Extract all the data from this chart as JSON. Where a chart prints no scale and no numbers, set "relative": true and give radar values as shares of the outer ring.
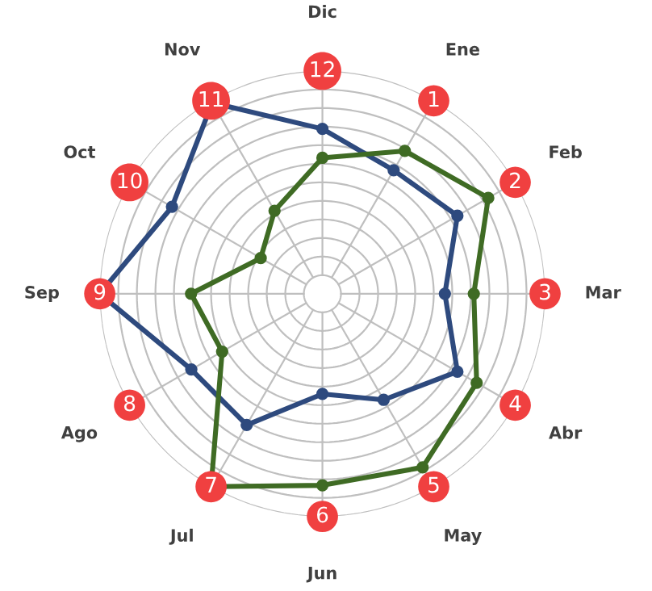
{
  "chart_data": {
    "type": "radar",
    "relative": true,
    "grid": true,
    "legend": false,
    "marker": "circle",
    "categories": [
      "Dic",
      "Ene",
      "Feb",
      "Mar",
      "Abr",
      "May",
      "Jun",
      "Jul",
      "Ago",
      "Sep",
      "Oct",
      "Nov"
    ],
    "series": [
      {
        "color": "#2e4a7e",
        "values": [
          0.74,
          0.64,
          0.7,
          0.55,
          0.7,
          0.55,
          0.45,
          0.68,
          0.68,
          1.0,
          0.78,
          0.99
        ]
      },
      {
        "color": "#3f6b24",
        "values": [
          0.61,
          0.74,
          0.86,
          0.68,
          0.8,
          0.9,
          0.86,
          1.0,
          0.52,
          0.59,
          0.32,
          0.43
        ]
      }
    ],
    "annotations": [
      "12",
      "1",
      "2",
      "3",
      "4",
      "5",
      "6",
      "7",
      "8",
      "9",
      "10",
      "11"
    ]
  }
}
